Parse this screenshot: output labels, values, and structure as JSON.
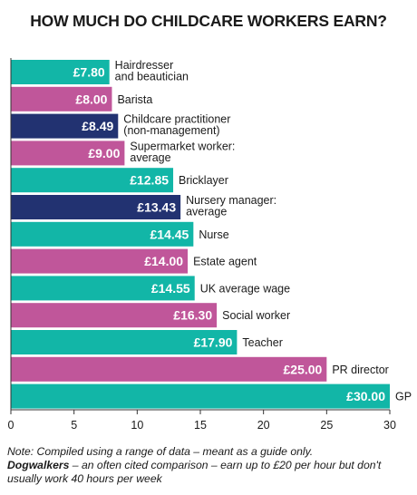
{
  "title": "HOW MUCH DO CHILDCARE WORKERS EARN?",
  "note_line1": "Note: Compiled using a range of data – meant as a guide only.",
  "note_bold": "Dogwalkers",
  "note_rest": " – an often cited comparison – earn up to £20 per hour but don't usually work 40 hours per week",
  "colors": {
    "teal": "#12b6a7",
    "pink": "#c0569a",
    "navy": "#223271",
    "axis": "#333333"
  },
  "chart_data": {
    "type": "bar",
    "orientation": "horizontal",
    "title": "HOW MUCH DO CHILDCARE WORKERS EARN?",
    "xlim": [
      0,
      30
    ],
    "xticks": [
      0,
      5,
      10,
      15,
      20,
      25,
      30
    ],
    "grid": false,
    "bars": [
      {
        "label": [
          "Hairdresser",
          "and beautician"
        ],
        "value": 7.8,
        "value_label": "£7.80",
        "color": "teal"
      },
      {
        "label": [
          "Barista"
        ],
        "value": 8.0,
        "value_label": "£8.00",
        "color": "pink"
      },
      {
        "label": [
          "Childcare practitioner",
          "(non-management)"
        ],
        "value": 8.49,
        "value_label": "£8.49",
        "color": "navy"
      },
      {
        "label": [
          "Supermarket worker:",
          "average"
        ],
        "value": 9.0,
        "value_label": "£9.00",
        "color": "pink"
      },
      {
        "label": [
          "Bricklayer"
        ],
        "value": 12.85,
        "value_label": "£12.85",
        "color": "teal"
      },
      {
        "label": [
          "Nursery manager:",
          "average"
        ],
        "value": 13.43,
        "value_label": "£13.43",
        "color": "navy"
      },
      {
        "label": [
          "Nurse"
        ],
        "value": 14.45,
        "value_label": "£14.45",
        "color": "teal"
      },
      {
        "label": [
          "Estate agent"
        ],
        "value": 14.0,
        "value_label": "£14.00",
        "color": "pink"
      },
      {
        "label": [
          "UK average wage"
        ],
        "value": 14.55,
        "value_label": "£14.55",
        "color": "teal"
      },
      {
        "label": [
          "Social worker"
        ],
        "value": 16.3,
        "value_label": "£16.30",
        "color": "pink"
      },
      {
        "label": [
          "Teacher"
        ],
        "value": 17.9,
        "value_label": "£17.90",
        "color": "teal"
      },
      {
        "label": [
          "PR director"
        ],
        "value": 25.0,
        "value_label": "£25.00",
        "color": "pink"
      },
      {
        "label": [
          "GP"
        ],
        "value": 30.0,
        "value_label": "£30.00",
        "color": "teal"
      }
    ]
  }
}
